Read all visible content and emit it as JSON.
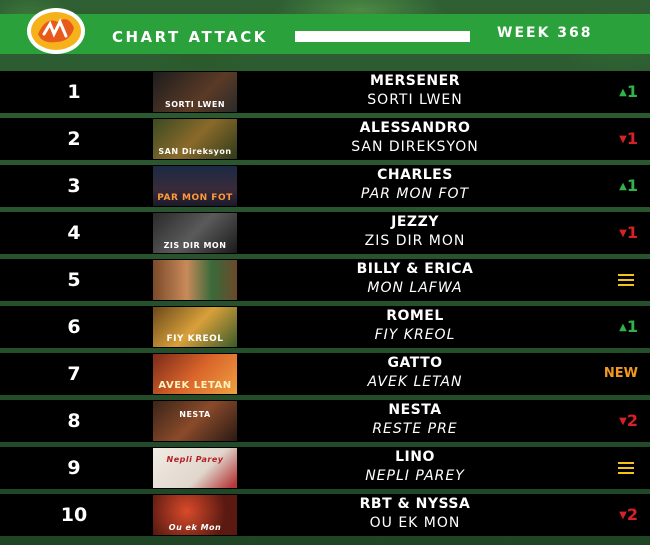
{
  "header": {
    "logo_text": "Chart Attack logo",
    "title": "CHART ATTACK",
    "week": "WEEK 368"
  },
  "colors": {
    "header_green": "#2aa13a",
    "up": "#2fb34a",
    "down": "#d8202a",
    "new": "#f39a1e",
    "same": "#f5c21b"
  },
  "entries": [
    {
      "rank": "1",
      "artist": "MERSENER",
      "song": "SORTI LWEN",
      "italic": false,
      "move": "up",
      "change": "1",
      "thumb_caption": "SORTI LWEN"
    },
    {
      "rank": "2",
      "artist": "ALESSANDRO",
      "song": "SAN DIREKSYON",
      "italic": false,
      "move": "down",
      "change": "1",
      "thumb_caption": "SAN Direksyon"
    },
    {
      "rank": "3",
      "artist": "CHARLES",
      "song": "PAR MON FOT",
      "italic": true,
      "move": "up",
      "change": "1",
      "thumb_caption": "PAR MON FOT"
    },
    {
      "rank": "4",
      "artist": "JEZZY",
      "song": "ZIS DIR MON",
      "italic": false,
      "move": "down",
      "change": "1",
      "thumb_caption": "ZIS DIR MON"
    },
    {
      "rank": "5",
      "artist": "BILLY & ERICA",
      "song": "MON LAFWA",
      "italic": true,
      "move": "same",
      "change": "",
      "thumb_caption": ""
    },
    {
      "rank": "6",
      "artist": "ROMEL",
      "song": "FIY KREOL",
      "italic": true,
      "move": "up",
      "change": "1",
      "thumb_caption": "FIY KREOL"
    },
    {
      "rank": "7",
      "artist": "GATTO",
      "song": "AVEK LETAN",
      "italic": true,
      "move": "new",
      "change": "NEW",
      "thumb_caption": "AVEK LETAN"
    },
    {
      "rank": "8",
      "artist": "NESTA",
      "song": "RESTE PRE",
      "italic": true,
      "move": "down",
      "change": "2",
      "thumb_caption": "NESTA"
    },
    {
      "rank": "9",
      "artist": "LINO",
      "song": "NEPLI PAREY",
      "italic": true,
      "move": "same",
      "change": "",
      "thumb_caption": "Nepli Parey"
    },
    {
      "rank": "10",
      "artist": "RBT & NYSSA",
      "song": "OU EK MON",
      "italic": false,
      "move": "down",
      "change": "2",
      "thumb_caption": "Ou ek Mon"
    }
  ]
}
